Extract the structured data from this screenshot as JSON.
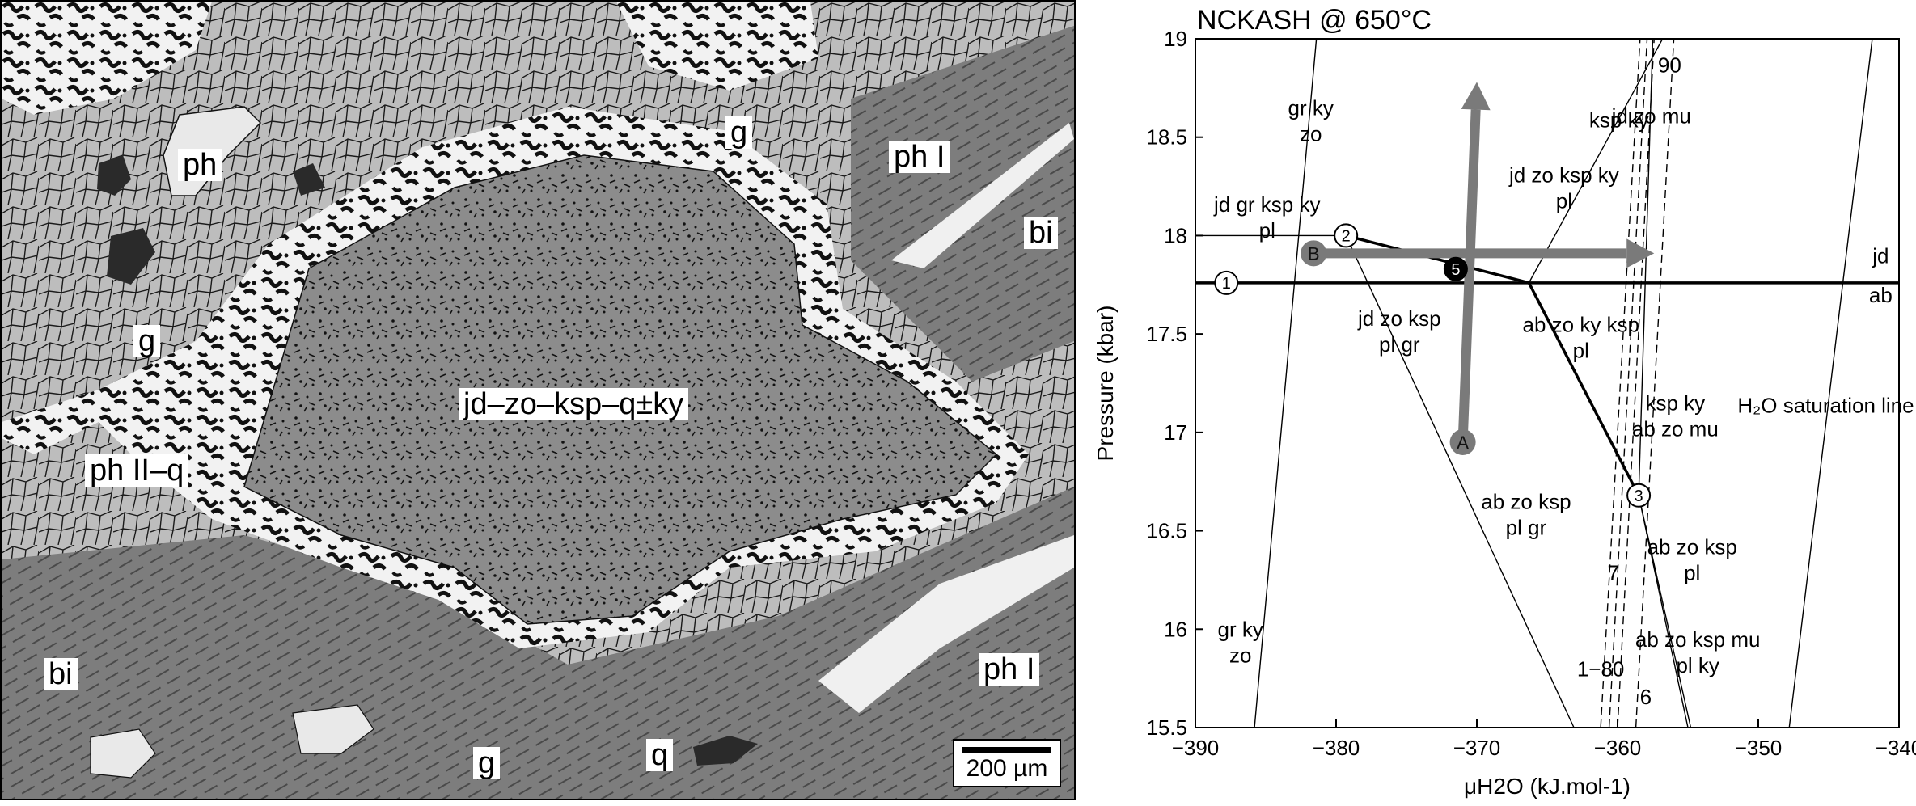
{
  "micrograph": {
    "labels": {
      "ph": "ph",
      "g_top": "g",
      "ph_i_top": "ph I",
      "bi_right": "bi",
      "g_left": "g",
      "core": "jd–zo–ksp–q±ky",
      "ph_ii_q": "ph II–q",
      "bi_left": "bi",
      "ph_i_bottom": "ph I",
      "g_bottom": "g",
      "q": "q"
    },
    "scale_bar": "200 µm",
    "colors": {
      "garnet": "#bdbdbd",
      "biotite": "#7d7d7d",
      "phengite": "#f0f0f0",
      "core": "#8a8a8a",
      "quartz": "#2a2a2a"
    }
  },
  "chart_data": {
    "type": "line",
    "title": "NCKASH @ 650°C",
    "xlabel": "μH2O (kJ.mol-1)",
    "ylabel": "Pressure (kbar)",
    "xlim": [
      -390,
      -340
    ],
    "ylim": [
      15.5,
      19
    ],
    "x_ticks": [
      -390,
      -380,
      -370,
      -360,
      -350,
      -340
    ],
    "y_ticks": [
      15.5,
      16,
      16.5,
      17,
      17.5,
      18,
      18.5,
      19
    ],
    "x_tick_labels": [
      "−390",
      "−380",
      "−370",
      "−360",
      "−350",
      "−340"
    ],
    "y_tick_labels": [
      "15.5",
      "16",
      "16.5",
      "17",
      "17.5",
      "18",
      "18.5",
      "19"
    ],
    "lines": [
      {
        "id": "pl-gr-ky-zo",
        "points": [
          [
            -381.4,
            19
          ],
          [
            -385.8,
            15.5
          ]
        ],
        "bold": false
      },
      {
        "id": "jd-ab",
        "points": [
          [
            -390,
            17.76
          ],
          [
            -340,
            17.76
          ]
        ],
        "bold": true
      },
      {
        "id": "jd-gr-ksp-ky-pl",
        "points": [
          [
            -390,
            18.0
          ],
          [
            -379.5,
            18.0
          ]
        ],
        "bold": false
      },
      {
        "id": "jd-zo-ksp-pl-gr-bold",
        "points": [
          [
            -379.3,
            18.0
          ],
          [
            -366.3,
            17.76
          ]
        ],
        "bold": true
      },
      {
        "id": "abzoksp-plgr",
        "points": [
          [
            -379.3,
            18.0
          ],
          [
            -363.1,
            15.5
          ]
        ],
        "bold": false
      },
      {
        "id": "ab-zo-ky-ksp-pl",
        "points": [
          [
            -366.3,
            17.76
          ],
          [
            -358.5,
            16.68
          ]
        ],
        "bold": true
      },
      {
        "id": "jdzokspky-pl",
        "points": [
          [
            -366.3,
            17.76
          ],
          [
            -356.8,
            19
          ]
        ],
        "bold": false
      },
      {
        "id": "abzokspmu-pl",
        "points": [
          [
            -358.5,
            16.68
          ],
          [
            -354.8,
            15.5
          ]
        ],
        "bold": false
      },
      {
        "id": "abzomu-plky",
        "points": [
          [
            -358.5,
            16.68
          ],
          [
            -355.0,
            15.5
          ]
        ],
        "bold": false
      },
      {
        "id": "kspky-abzomu",
        "points": [
          [
            -358.5,
            16.68
          ],
          [
            -357.5,
            19
          ]
        ],
        "bold": false
      },
      {
        "id": "h2o-saturation",
        "points": [
          [
            -347.8,
            15.5
          ],
          [
            -341.9,
            19
          ]
        ],
        "bold": false
      }
    ],
    "dashed_lines": [
      {
        "id": "dash-1",
        "points": [
          [
            -361.2,
            15.5
          ],
          [
            -358.4,
            19
          ]
        ]
      },
      {
        "id": "dash-2",
        "points": [
          [
            -360.6,
            15.5
          ],
          [
            -357.9,
            19
          ]
        ]
      },
      {
        "id": "dash-3",
        "points": [
          [
            -360.0,
            15.5
          ],
          [
            -357.4,
            19
          ]
        ]
      },
      {
        "id": "dash-4",
        "points": [
          [
            -358.7,
            15.5
          ],
          [
            -356.0,
            19
          ]
        ]
      }
    ],
    "arrows": [
      {
        "id": "arrow-A",
        "label": "A",
        "from": [
          -371.0,
          16.95
        ],
        "to": [
          -370.0,
          18.78
        ]
      },
      {
        "id": "arrow-B",
        "label": "B",
        "from": [
          -381.6,
          17.91
        ],
        "to": [
          -357.4,
          17.91
        ]
      }
    ],
    "nodes": [
      {
        "label": "1",
        "x": -387.8,
        "y": 17.76,
        "filled": false
      },
      {
        "label": "2",
        "x": -379.3,
        "y": 18.0,
        "filled": false
      },
      {
        "label": "3",
        "x": -358.5,
        "y": 16.68,
        "filled": false
      },
      {
        "label": "5",
        "x": -371.5,
        "y": 17.83,
        "filled": true
      }
    ],
    "reaction_labels": [
      {
        "id": "gr-ky-zo-top",
        "lines": [
          "gr ky",
          "zo"
        ],
        "x": -381.8,
        "y": 18.55
      },
      {
        "id": "jd-gr-ksp-ky-pl",
        "lines": [
          "jd gr ksp ky",
          "pl"
        ],
        "x": -384.9,
        "y": 18.06
      },
      {
        "id": "jd-zo-ksp-pl-gr",
        "lines": [
          "jd zo ksp",
          "pl gr"
        ],
        "x": -375.5,
        "y": 17.48
      },
      {
        "id": "jd-zo-ksp-ky-pl",
        "lines": [
          "jd zo ksp ky",
          "pl"
        ],
        "x": -363.8,
        "y": 18.21
      },
      {
        "id": "ksp-ky-top",
        "lines": [
          "ksp ky"
        ],
        "x": -359.9,
        "y": 18.55
      },
      {
        "id": "jd-zo-mu",
        "lines": [
          "jd zo mu"
        ],
        "x": -357.6,
        "y": 18.57
      },
      {
        "id": "ab-zo-ky-ksp-pl",
        "lines": [
          "ab zo ky ksp",
          "pl"
        ],
        "x": -362.6,
        "y": 17.45
      },
      {
        "id": "ab-zo-ksp-pl-gr",
        "lines": [
          "ab zo ksp",
          "pl gr"
        ],
        "x": -366.5,
        "y": 16.55
      },
      {
        "id": "ksp-ky-ab-zo-mu",
        "lines": [
          "ksp ky",
          "ab zo mu"
        ],
        "x": -355.9,
        "y": 17.05
      },
      {
        "id": "ab-zo-ksp-pl",
        "lines": [
          "ab zo ksp",
          "pl"
        ],
        "x": -354.7,
        "y": 16.32
      },
      {
        "id": "ab-zo-ksp-mu-pl-ky",
        "lines": [
          "ab zo ksp mu",
          "pl ky"
        ],
        "x": -354.3,
        "y": 15.85
      },
      {
        "id": "gr-ky-zo-bottom",
        "lines": [
          "gr ky",
          "zo"
        ],
        "x": -386.8,
        "y": 15.9
      },
      {
        "id": "jd",
        "lines": [
          "jd"
        ],
        "x": -341.3,
        "y": 17.86
      },
      {
        "id": "ab",
        "lines": [
          "ab"
        ],
        "x": -341.3,
        "y": 17.66
      },
      {
        "id": "90",
        "lines": [
          "90"
        ],
        "x": -356.3,
        "y": 18.83
      },
      {
        "id": "7",
        "lines": [
          "7"
        ],
        "x": -360.3,
        "y": 16.25
      },
      {
        "id": "1-80",
        "lines": [
          "1−80"
        ],
        "x": -361.2,
        "y": 15.76
      },
      {
        "id": "6",
        "lines": [
          "6"
        ],
        "x": -358.0,
        "y": 15.62
      },
      {
        "id": "h2o-sat",
        "lines": [
          "H₂O saturation line"
        ],
        "x": -345.2,
        "y": 17.1
      }
    ],
    "grid": false
  }
}
